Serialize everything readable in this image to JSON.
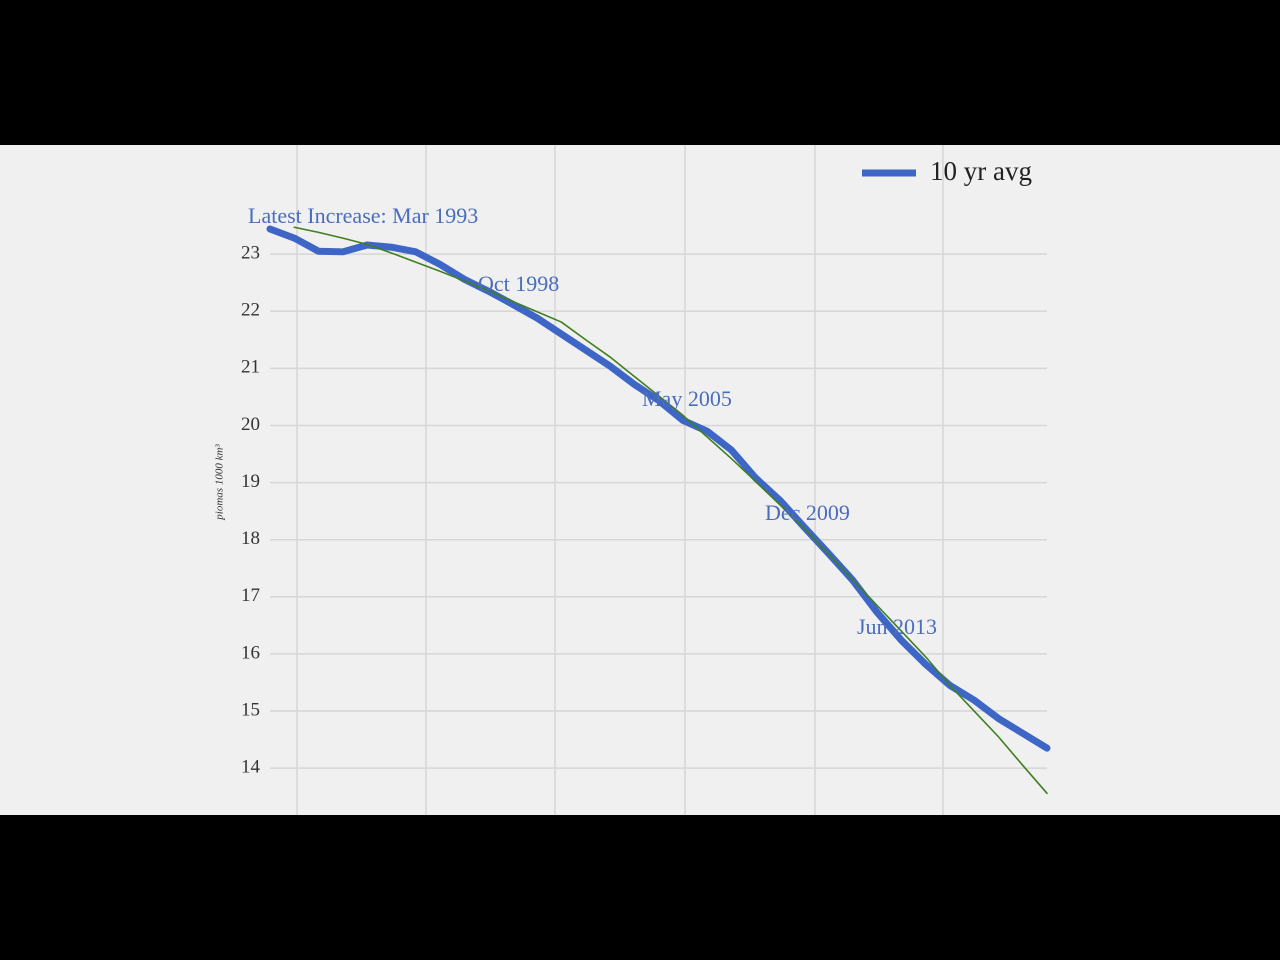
{
  "chart_data": {
    "type": "line",
    "y_label": "piomas 1000 km³",
    "categories": [
      null,
      null,
      null,
      null,
      null,
      null,
      null,
      null,
      null,
      null,
      null,
      null,
      null,
      null,
      null,
      null,
      null,
      null,
      null,
      null,
      null,
      null,
      null,
      null,
      null,
      null,
      null,
      null,
      null,
      null,
      null,
      null,
      null
    ],
    "series": [
      {
        "name": "10 yr avg",
        "color": "#3d66c6",
        "values": [
          23.44,
          23.28,
          23.05,
          23.04,
          23.16,
          23.12,
          23.04,
          22.82,
          22.56,
          22.35,
          22.12,
          21.88,
          21.6,
          21.32,
          21.04,
          20.72,
          20.44,
          20.09,
          19.9,
          19.57,
          19.08,
          18.69,
          18.22,
          17.76,
          17.29,
          16.73,
          16.24,
          15.82,
          15.45,
          15.19,
          14.87,
          14.61,
          14.35
        ]
      },
      {
        "color": "#3f7f1f",
        "values": [
          null,
          23.47,
          23.38,
          23.28,
          23.17,
          23.02,
          22.86,
          22.7,
          22.53,
          22.36,
          22.17,
          21.99,
          21.81,
          21.5,
          21.2,
          20.86,
          20.52,
          20.18,
          19.8,
          19.42,
          19.02,
          18.61,
          18.2,
          17.75,
          17.3,
          16.85,
          16.4,
          15.95,
          15.45,
          15.0,
          14.55,
          14.05,
          13.56
        ]
      }
    ],
    "annotations": [
      "Latest Increase: Mar 1993",
      "Oct 1998",
      "May 2005",
      "Dec 2009",
      "Jun 2013"
    ],
    "ylim": [
      13.18,
      24.91
    ],
    "yticks": [
      14,
      15,
      16,
      17,
      18,
      19,
      20,
      21,
      22,
      23
    ],
    "grid": true,
    "legend": "upper right"
  }
}
